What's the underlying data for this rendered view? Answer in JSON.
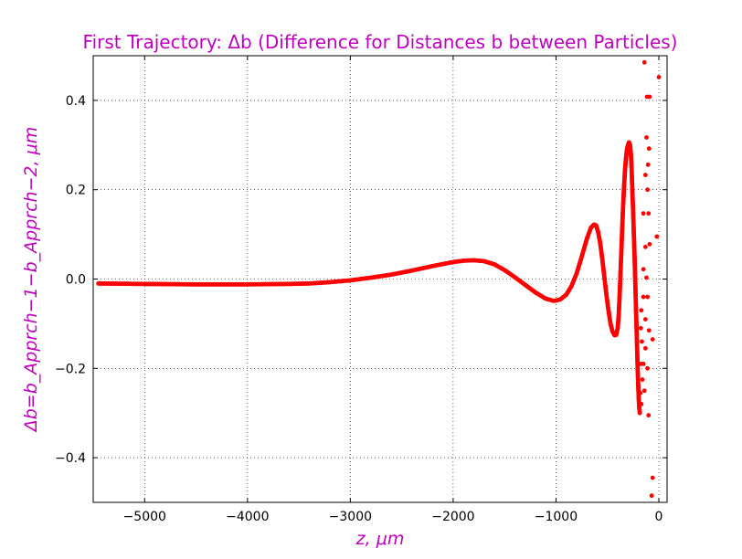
{
  "chart_data": {
    "type": "scatter",
    "title": "First Trajectory: Δb (Difference for Distances b between Particles)",
    "xlabel": "z, μm",
    "ylabel": "Δb=b_Apprch−1−b_Apprch−2, μm",
    "xlim": [
      -5500,
      80
    ],
    "ylim": [
      -0.5,
      0.5
    ],
    "x_ticks": [
      -5000,
      -4000,
      -3000,
      -2000,
      -1000,
      0
    ],
    "x_tick_labels": [
      "−5000",
      "−4000",
      "−3000",
      "−2000",
      "−1000",
      "0"
    ],
    "y_ticks": [
      -0.4,
      -0.2,
      0.0,
      0.2,
      0.4
    ],
    "y_tick_labels": [
      "−0.4",
      "−0.2",
      "0.0",
      "0.2",
      "0.4"
    ],
    "grid": true,
    "marker_color": "#ff0000",
    "series": [
      {
        "points_dense": [
          [
            -5450,
            -0.01
          ],
          [
            -5000,
            -0.011
          ],
          [
            -4500,
            -0.012
          ],
          [
            -4000,
            -0.012
          ],
          [
            -3600,
            -0.011
          ],
          [
            -3400,
            -0.01
          ],
          [
            -3200,
            -0.007
          ],
          [
            -3000,
            -0.003
          ],
          [
            -2800,
            0.003
          ],
          [
            -2600,
            0.01
          ],
          [
            -2400,
            0.019
          ],
          [
            -2200,
            0.029
          ],
          [
            -2000,
            0.038
          ],
          [
            -1900,
            0.041
          ],
          [
            -1800,
            0.042
          ],
          [
            -1700,
            0.04
          ],
          [
            -1600,
            0.033
          ],
          [
            -1500,
            0.02
          ],
          [
            -1400,
            0.004
          ],
          [
            -1300,
            -0.013
          ],
          [
            -1200,
            -0.03
          ],
          [
            -1100,
            -0.044
          ],
          [
            -1020,
            -0.049
          ],
          [
            -960,
            -0.046
          ],
          [
            -900,
            -0.035
          ],
          [
            -850,
            -0.016
          ],
          [
            -800,
            0.012
          ],
          [
            -750,
            0.05
          ],
          [
            -700,
            0.09
          ],
          [
            -660,
            0.115
          ],
          [
            -630,
            0.122
          ],
          [
            -610,
            0.12
          ],
          [
            -590,
            0.105
          ],
          [
            -570,
            0.08
          ],
          [
            -550,
            0.045
          ],
          [
            -530,
            0.005
          ],
          [
            -510,
            -0.035
          ],
          [
            -490,
            -0.07
          ],
          [
            -470,
            -0.1
          ],
          [
            -450,
            -0.118
          ],
          [
            -430,
            -0.126
          ],
          [
            -415,
            -0.125
          ],
          [
            -400,
            -0.11
          ],
          [
            -390,
            -0.08
          ],
          [
            -380,
            -0.03
          ],
          [
            -370,
            0.03
          ],
          [
            -360,
            0.09
          ],
          [
            -350,
            0.15
          ],
          [
            -340,
            0.2
          ],
          [
            -330,
            0.24
          ],
          [
            -320,
            0.27
          ],
          [
            -310,
            0.29
          ],
          [
            -300,
            0.3
          ],
          [
            -290,
            0.306
          ],
          [
            -280,
            0.3
          ],
          [
            -272,
            0.28
          ],
          [
            -265,
            0.25
          ],
          [
            -258,
            0.2
          ],
          [
            -250,
            0.15
          ],
          [
            -243,
            0.1
          ],
          [
            -236,
            0.05
          ],
          [
            -230,
            0.0
          ],
          [
            -224,
            -0.05
          ],
          [
            -218,
            -0.1
          ],
          [
            -212,
            -0.15
          ],
          [
            -206,
            -0.2
          ],
          [
            -200,
            -0.24
          ],
          [
            -195,
            -0.27
          ],
          [
            -190,
            -0.29
          ],
          [
            -185,
            -0.3
          ]
        ],
        "points_sparse": [
          [
            -140,
            0.485
          ],
          [
            -115,
            0.408
          ],
          [
            -120,
            0.317
          ],
          [
            -95,
            0.292
          ],
          [
            -105,
            0.256
          ],
          [
            -130,
            0.233
          ],
          [
            -110,
            0.2
          ],
          [
            -150,
            0.147
          ],
          [
            -100,
            0.147
          ],
          [
            -130,
            0.072
          ],
          [
            -90,
            0.078
          ],
          [
            -20,
            0.095
          ],
          [
            -150,
            0.022
          ],
          [
            -120,
            0.003
          ],
          [
            -150,
            -0.04
          ],
          [
            -110,
            -0.04
          ],
          [
            -170,
            -0.07
          ],
          [
            -130,
            -0.09
          ],
          [
            -175,
            -0.11
          ],
          [
            -95,
            -0.115
          ],
          [
            -60,
            -0.135
          ],
          [
            -165,
            -0.14
          ],
          [
            -130,
            -0.155
          ],
          [
            -175,
            -0.19
          ],
          [
            -150,
            -0.19
          ],
          [
            -110,
            -0.2
          ],
          [
            -160,
            -0.225
          ],
          [
            -140,
            -0.25
          ],
          [
            -180,
            -0.255
          ],
          [
            -170,
            -0.28
          ],
          [
            -185,
            -0.295
          ],
          [
            -100,
            -0.305
          ],
          [
            0,
            0.452
          ],
          [
            -60,
            -0.445
          ],
          [
            -70,
            -0.485
          ],
          [
            -90,
            0.408
          ]
        ]
      }
    ]
  }
}
